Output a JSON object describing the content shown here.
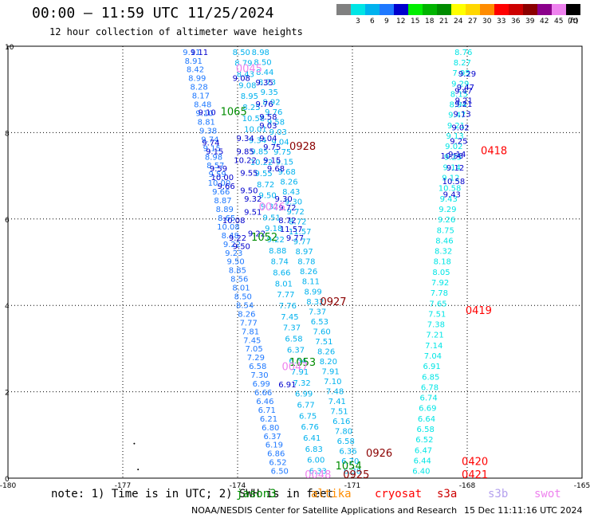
{
  "title": "00:00 – 11:59 UTC 11/25/2024",
  "subtitle": "12 hour collection of altimeter wave heights",
  "colorbar": {
    "unit": "(ft)",
    "steps": [
      {
        "label": "",
        "color": "#808080"
      },
      {
        "label": "3",
        "color": "#00e5e5"
      },
      {
        "label": "6",
        "color": "#00b2ee"
      },
      {
        "label": "9",
        "color": "#1e78ff"
      },
      {
        "label": "12",
        "color": "#0000cd"
      },
      {
        "label": "15",
        "color": "#00ee00"
      },
      {
        "label": "18",
        "color": "#00b400"
      },
      {
        "label": "21",
        "color": "#008c00"
      },
      {
        "label": "24",
        "color": "#ffff00"
      },
      {
        "label": "27",
        "color": "#ffd700"
      },
      {
        "label": "30",
        "color": "#ff8c00"
      },
      {
        "label": "33",
        "color": "#ff0000"
      },
      {
        "label": "36",
        "color": "#cd0000"
      },
      {
        "label": "39",
        "color": "#8b0000"
      },
      {
        "label": "42",
        "color": "#8b008b"
      },
      {
        "label": "45",
        "color": "#ee82ee"
      },
      {
        "label": "70",
        "color": "#000000"
      }
    ]
  },
  "footnote": "note: 1) Time is in UTC; 2) SWH is in feet",
  "missions": [
    {
      "name": "jason3",
      "color": "#008c00"
    },
    {
      "name": "altika",
      "color": "#ff8c00"
    },
    {
      "name": "cryosat",
      "color": "#ff0000"
    },
    {
      "name": "s3a",
      "color": "#cd0000"
    },
    {
      "name": "s3b",
      "color": "#b4a0ee"
    },
    {
      "name": "swot",
      "color": "#ee82ee"
    }
  ],
  "credit": "NOAA/NESDIS Center for Satellite Applications and Research",
  "stamp": "15 Dec 11:11:16 UTC 2024",
  "chart_data": {
    "type": "scatter",
    "xlim": [
      -180,
      -165
    ],
    "ylim": [
      0,
      10
    ],
    "xticks": [
      "-180",
      "-177",
      "-174",
      "-171",
      "-168",
      "-165"
    ],
    "yticks": [
      "0",
      "2",
      "4",
      "6",
      "8",
      "10"
    ],
    "grid": true,
    "tracks": [
      {
        "color": "#1e78ff",
        "start": [
          -175.2,
          9.8
        ],
        "end": [
          -172.9,
          0.1
        ],
        "values": [
          "9.11",
          "8.91",
          "8.42",
          "8.99",
          "8.28",
          "8.17",
          "8.48",
          "9.10",
          "8.81",
          "9.38",
          "9.74",
          "9.15",
          "8.98",
          "8.57",
          "9.59",
          "10.00",
          "9.66",
          "8.87",
          "8.89",
          "8.65",
          "10.08",
          "8.48",
          "9.22",
          "9.23",
          "9.50",
          "8.85",
          "8.56",
          "8.01",
          "8.50",
          "8.54",
          "8.26",
          "7.77",
          "7.81",
          "7.45",
          "7.05",
          "7.29",
          "6.58",
          "7.30",
          "6.99",
          "6.66",
          "6.46",
          "6.71",
          "6.21",
          "6.80",
          "6.37",
          "6.19",
          "6.86",
          "6.52",
          "6.50"
        ]
      },
      {
        "color": "#00b2ee",
        "start": [
          -173.9,
          9.8
        ],
        "end": [
          -171.9,
          0.1
        ],
        "values": [
          "8.50",
          "8.79",
          "8.43",
          "9.08",
          "8.95",
          "8.25",
          "10.58",
          "10.01",
          "9.34",
          "9.85",
          "10.22",
          "9.55",
          "8.72",
          "9.50",
          "9.32",
          "9.51",
          "9.18",
          "9.22",
          "8.88",
          "8.74",
          "8.66",
          "8.01",
          "7.77",
          "7.76",
          "7.45",
          "7.37",
          "6.58",
          "6.37",
          "6.54",
          "7.91",
          "7.32",
          "6.99",
          "6.77",
          "6.75",
          "6.76",
          "6.41",
          "6.83",
          "6.00",
          "6.33"
        ]
      },
      {
        "color": "#00b2ee",
        "start": [
          -173.4,
          9.8
        ],
        "end": [
          -171.0,
          0.1
        ],
        "values": [
          "8.98",
          "8.50",
          "8.44",
          "8.73",
          "9.35",
          "8.92",
          "9.76",
          "9.58",
          "9.03",
          "9.04",
          "9.75",
          "9.15",
          "9.68",
          "8.26",
          "8.43",
          "9.30",
          "9.72",
          "8.72",
          "11.57",
          "9.77",
          "8.97",
          "8.78",
          "8.26",
          "8.11",
          "8.99",
          "8.32",
          "7.37",
          "6.53",
          "7.60",
          "7.51",
          "8.26",
          "8.20",
          "7.91",
          "7.10",
          "7.48",
          "7.41",
          "7.51",
          "6.16",
          "7.80",
          "6.58",
          "6.36",
          "6.70",
          "6.38"
        ]
      },
      {
        "color": "#00e5e5",
        "start": [
          -168.1,
          9.8
        ],
        "end": [
          -169.2,
          0.1
        ],
        "values": [
          "8.76",
          "8.27",
          "7.95",
          "9.29",
          "8.15",
          "8.94",
          "9.47",
          "9.21",
          "9.13",
          "9.02",
          "9.25",
          "9.14",
          "9.12",
          "10.58",
          "9.43",
          "9.29",
          "9.26",
          "8.75",
          "8.46",
          "8.32",
          "8.18",
          "8.05",
          "7.92",
          "7.78",
          "7.65",
          "7.51",
          "7.38",
          "7.21",
          "7.14",
          "7.04",
          "6.91",
          "6.85",
          "6.78",
          "6.74",
          "6.69",
          "6.64",
          "6.58",
          "6.52",
          "6.47",
          "6.44",
          "6.40"
        ]
      },
      {
        "color": "#0000cd",
        "start": [
          -168.0,
          9.3
        ],
        "end": [
          -168.4,
          6.5
        ],
        "values": [
          "9.29",
          "9.47",
          "9.21",
          "9.13",
          "9.02",
          "9.25",
          "9.14",
          "9.12",
          "10.58",
          "9.43"
        ]
      }
    ],
    "points": [
      {
        "value": "9.11",
        "x": -175.0,
        "y": 9.8,
        "color": "#0000cd"
      },
      {
        "value": "9.10",
        "x": -174.8,
        "y": 8.4,
        "color": "#0000cd"
      },
      {
        "value": "9.74",
        "x": -174.7,
        "y": 7.7,
        "color": "#0000cd"
      },
      {
        "value": "9.15",
        "x": -174.6,
        "y": 7.5,
        "color": "#0000cd"
      },
      {
        "value": "9.59",
        "x": -174.5,
        "y": 7.1,
        "color": "#0000cd"
      },
      {
        "value": "10.00",
        "x": -174.4,
        "y": 6.9,
        "color": "#0000cd"
      },
      {
        "value": "9.66",
        "x": -174.3,
        "y": 6.7,
        "color": "#0000cd"
      },
      {
        "value": "10.08",
        "x": -174.1,
        "y": 5.9,
        "color": "#0000cd"
      },
      {
        "value": "9.22",
        "x": -174.0,
        "y": 5.5,
        "color": "#0000cd"
      },
      {
        "value": "9.50",
        "x": -173.9,
        "y": 5.3,
        "color": "#0000cd"
      },
      {
        "value": "9.08",
        "x": -173.9,
        "y": 9.2,
        "color": "#0000cd"
      },
      {
        "value": "9.34",
        "x": -173.8,
        "y": 7.8,
        "color": "#0000cd"
      },
      {
        "value": "9.85",
        "x": -173.8,
        "y": 7.5,
        "color": "#0000cd"
      },
      {
        "value": "10.22",
        "x": -173.8,
        "y": 7.3,
        "color": "#0000cd"
      },
      {
        "value": "9.55",
        "x": -173.7,
        "y": 7.0,
        "color": "#0000cd"
      },
      {
        "value": "9.50",
        "x": -173.7,
        "y": 6.6,
        "color": "#0000cd"
      },
      {
        "value": "9.32",
        "x": -173.6,
        "y": 6.4,
        "color": "#0000cd"
      },
      {
        "value": "9.51",
        "x": -173.6,
        "y": 6.1,
        "color": "#0000cd"
      },
      {
        "value": "9.22",
        "x": -173.5,
        "y": 5.6,
        "color": "#0000cd"
      },
      {
        "value": "9.35",
        "x": -173.3,
        "y": 9.1,
        "color": "#0000cd"
      },
      {
        "value": "9.76",
        "x": -173.3,
        "y": 8.6,
        "color": "#0000cd"
      },
      {
        "value": "9.58",
        "x": -173.2,
        "y": 8.3,
        "color": "#0000cd"
      },
      {
        "value": "9.03",
        "x": -173.2,
        "y": 8.1,
        "color": "#0000cd"
      },
      {
        "value": "9.04",
        "x": -173.2,
        "y": 7.8,
        "color": "#0000cd"
      },
      {
        "value": "9.75",
        "x": -173.1,
        "y": 7.6,
        "color": "#0000cd"
      },
      {
        "value": "9.15",
        "x": -173.1,
        "y": 7.3,
        "color": "#0000cd"
      },
      {
        "value": "9.68",
        "x": -173.0,
        "y": 7.1,
        "color": "#0000cd"
      },
      {
        "value": "9.30",
        "x": -172.8,
        "y": 6.4,
        "color": "#0000cd"
      },
      {
        "value": "9.72",
        "x": -172.7,
        "y": 6.2,
        "color": "#0000cd"
      },
      {
        "value": "8.72",
        "x": -172.7,
        "y": 5.9,
        "color": "#0000cd"
      },
      {
        "value": "11.57",
        "x": -172.6,
        "y": 5.7,
        "color": "#0000cd"
      },
      {
        "value": "9.77",
        "x": -172.5,
        "y": 5.5,
        "color": "#0000cd"
      },
      {
        "value": "9.47",
        "x": -168.1,
        "y": 8.9,
        "color": "#0000cd"
      },
      {
        "value": "9.21",
        "x": -168.1,
        "y": 8.6,
        "color": "#0000cd"
      },
      {
        "value": "10.58",
        "x": -168.4,
        "y": 7.4,
        "color": "#0000cd"
      },
      {
        "value": "6.91",
        "x": -172.7,
        "y": 2.1,
        "color": "#0000cd"
      },
      {
        "value": "1065",
        "x": -174.1,
        "y": 8.4,
        "color": "#008c00"
      },
      {
        "value": "1052",
        "x": -173.3,
        "y": 5.5,
        "color": "#008c00"
      },
      {
        "value": "1053",
        "x": -172.3,
        "y": 2.6,
        "color": "#008c00"
      },
      {
        "value": "1054",
        "x": -171.1,
        "y": 0.2,
        "color": "#008c00"
      },
      {
        "value": "0928",
        "x": -172.3,
        "y": 7.6,
        "color": "#8b0000"
      },
      {
        "value": "0927",
        "x": -171.5,
        "y": 4.0,
        "color": "#8b0000"
      },
      {
        "value": "0926",
        "x": -170.3,
        "y": 0.5,
        "color": "#8b0000"
      },
      {
        "value": "0925",
        "x": -170.9,
        "y": 0.0,
        "color": "#8b0000"
      },
      {
        "value": "0418",
        "x": -167.3,
        "y": 7.5,
        "color": "#ff0000"
      },
      {
        "value": "0419",
        "x": -167.7,
        "y": 3.8,
        "color": "#ff0000"
      },
      {
        "value": "0420",
        "x": -167.8,
        "y": 0.3,
        "color": "#ff0000"
      },
      {
        "value": "0421",
        "x": -167.8,
        "y": 0.0,
        "color": "#ff0000"
      },
      {
        "value": "0045",
        "x": -173.7,
        "y": 9.4,
        "color": "#ee82ee"
      },
      {
        "value": "0046",
        "x": -173.1,
        "y": 6.2,
        "color": "#ee82ee"
      },
      {
        "value": "0047",
        "x": -172.5,
        "y": 2.5,
        "color": "#ee82ee"
      },
      {
        "value": "0048",
        "x": -171.9,
        "y": 0.0,
        "color": "#ee82ee"
      }
    ],
    "dots": [
      {
        "x": -176.7,
        "y": 0.8
      },
      {
        "x": -176.6,
        "y": 0.2
      }
    ]
  }
}
